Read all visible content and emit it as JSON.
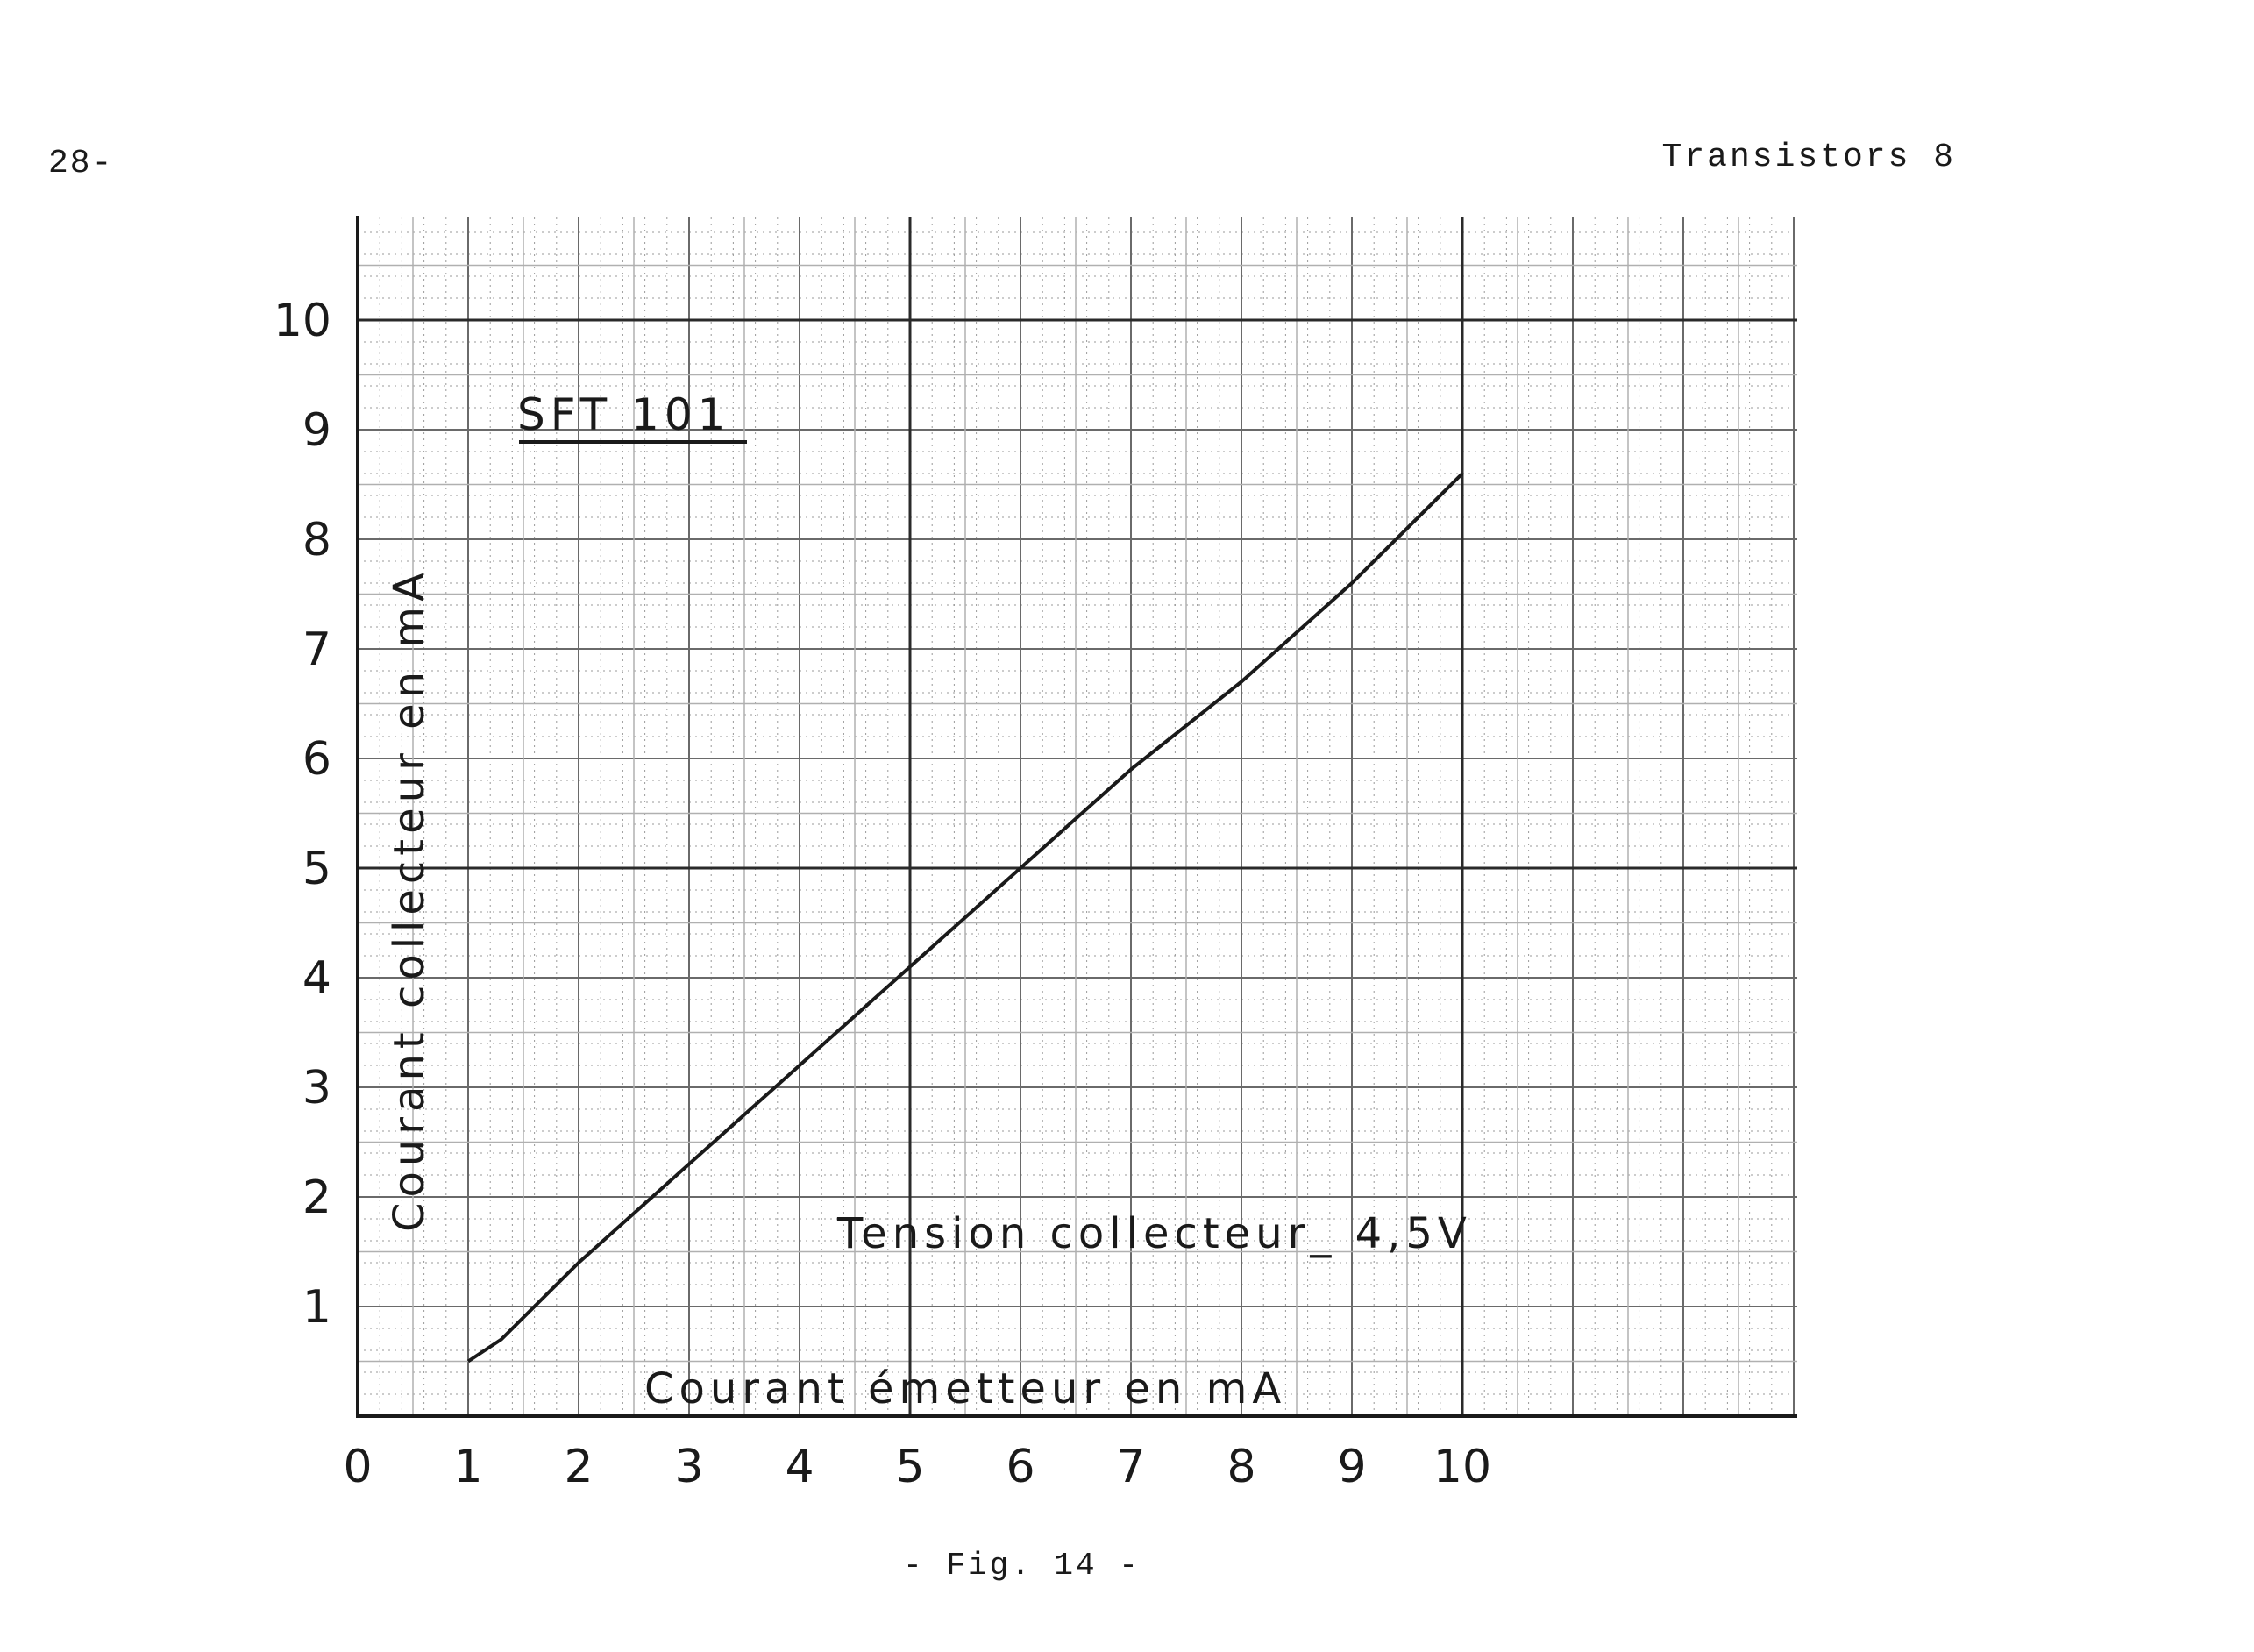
{
  "page": {
    "page_number": "28-",
    "header": "Transistors 8",
    "caption": "- Fig. 14 -"
  },
  "chart_data": {
    "type": "line",
    "title": "SFT 101",
    "annotation": "Tension collecteur_ 4,5V",
    "xlabel": "Courant émetteur en mA",
    "ylabel": "Courant collecteur en mA",
    "xlim": [
      0,
      13
    ],
    "ylim": [
      0,
      11
    ],
    "x_ticks": [
      "0",
      "1",
      "2",
      "3",
      "4",
      "5",
      "6",
      "7",
      "8",
      "9",
      "10"
    ],
    "y_ticks": [
      "1",
      "2",
      "3",
      "4",
      "5",
      "6",
      "7",
      "8",
      "9",
      "10"
    ],
    "grid": true,
    "series": [
      {
        "x": [
          1.0,
          1.3,
          2.0,
          3.0,
          4.0,
          5.0,
          6.0,
          7.0,
          8.0,
          9.0,
          10.0
        ],
        "y": [
          0.5,
          0.7,
          1.4,
          2.3,
          3.2,
          4.1,
          5.0,
          5.9,
          6.7,
          7.6,
          8.6
        ]
      }
    ]
  }
}
